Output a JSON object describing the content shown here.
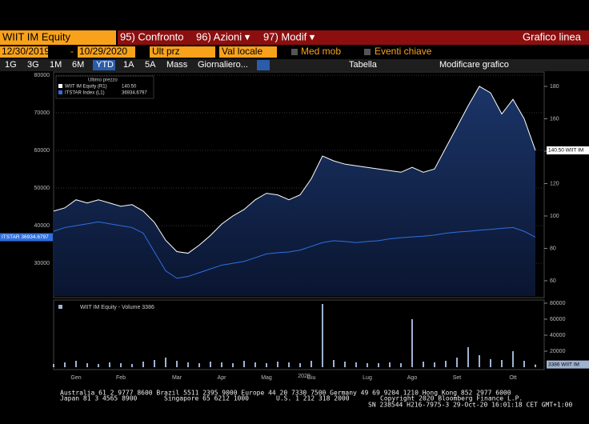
{
  "toolbar": {
    "security": "WIIT IM Equity",
    "buttons": [
      "95) Confronto",
      "96) Azioni ▾",
      "97) Modif ▾"
    ],
    "chart_type": "Grafico linea",
    "start_date": "12/30/2019",
    "separator": "-",
    "end_date": "10/29/2020",
    "price_field": "Ult prz",
    "currency": "Val locale",
    "options": [
      "Med mob",
      "Eventi chiave"
    ],
    "periods": [
      "1G",
      "3G",
      "1M",
      "6M",
      "YTD",
      "1A",
      "5A",
      "Mass"
    ],
    "frequency": "Giornaliero...",
    "table": "Tabella",
    "edit": "Modificare grafico"
  },
  "chart_data": [
    {
      "type": "line",
      "legend_title": "Ultimo prezzo",
      "x_group_label": "2020",
      "categories": [
        null,
        null,
        "Gen",
        null,
        null,
        null,
        "Feb",
        null,
        null,
        null,
        null,
        "Mar",
        null,
        null,
        null,
        "Apr",
        null,
        null,
        null,
        "Mag",
        null,
        null,
        null,
        "Giu",
        null,
        null,
        null,
        null,
        "Lug",
        null,
        null,
        null,
        "Ago",
        null,
        null,
        null,
        "Set",
        null,
        null,
        null,
        null,
        "Ott",
        null,
        null
      ],
      "ylim": [
        21300,
        80000
      ],
      "yticks": [
        30000,
        40000,
        50000,
        60000,
        70000,
        80000
      ],
      "y2lim": [
        50.6,
        186.9
      ],
      "y2ticks": [
        60,
        80,
        100,
        120,
        140,
        160,
        180
      ],
      "grid": true,
      "series": [
        {
          "name": "WIIT IM Equity (R1)",
          "last": "140.50",
          "tag": "140.50 WIIT IM",
          "color": "#ffffff",
          "area": true,
          "axis": "y2",
          "values": [
            103,
            105,
            110,
            108,
            110,
            108,
            106,
            107,
            103,
            96,
            85,
            78,
            77,
            82,
            88,
            95,
            100,
            104,
            110,
            114,
            113,
            110,
            113,
            123,
            137,
            134,
            132,
            131,
            130,
            129,
            128,
            127,
            130,
            127,
            129,
            142,
            155,
            168,
            180,
            176,
            163,
            172,
            160,
            140.5
          ]
        },
        {
          "name": "ITSTAR Index (L1)",
          "last": "36934.6797",
          "tag": "ITSTAR 36934.6797",
          "color": "#2f6fe0",
          "area": false,
          "values": [
            38500,
            39500,
            40000,
            40500,
            41000,
            40500,
            40000,
            39500,
            38000,
            33000,
            28000,
            26000,
            26500,
            27500,
            28500,
            29500,
            30000,
            30500,
            31500,
            32500,
            32800,
            33000,
            33500,
            34500,
            35500,
            36000,
            35800,
            35500,
            35800,
            36000,
            36500,
            36800,
            37000,
            37200,
            37500,
            38000,
            38300,
            38500,
            38800,
            39000,
            39300,
            39500,
            38500,
            36934.6797
          ]
        }
      ]
    },
    {
      "type": "bar",
      "legend": "WIIT IM Equity - Volume 3386",
      "tag": "3386 WIIT IM",
      "color": "#9fb3d1",
      "ylim": [
        0,
        80000
      ],
      "yticks": [
        20000,
        40000,
        60000,
        80000
      ],
      "values": [
        4000,
        6000,
        8000,
        5000,
        4000,
        6000,
        5000,
        4000,
        7000,
        9000,
        12000,
        8000,
        6000,
        5000,
        7000,
        6000,
        5000,
        8000,
        6000,
        5000,
        7000,
        6000,
        5000,
        8000,
        79000,
        9000,
        7000,
        6000,
        5000,
        5000,
        6000,
        5000,
        60000,
        7000,
        6000,
        8000,
        12000,
        25000,
        15000,
        10000,
        9000,
        20000,
        8000,
        3386
      ]
    }
  ],
  "footer": {
    "line1": "Australia 61 2 9777 8600 Brazil 5511 2395 9000 Europe 44 20 7330 7500 Germany 49 69 9204 1210 Hong Kong 852 2977 6000",
    "line2": [
      "Japan 81 3 4565 8900",
      "Singapore 65 6212 1000",
      "U.S. 1 212 318 2000",
      "Copyright 2020 Bloomberg Finance L.P."
    ],
    "line3": "SN 238544 H216-7975-3 29-Oct-20 16:01:18 CET  GMT+1:00"
  }
}
